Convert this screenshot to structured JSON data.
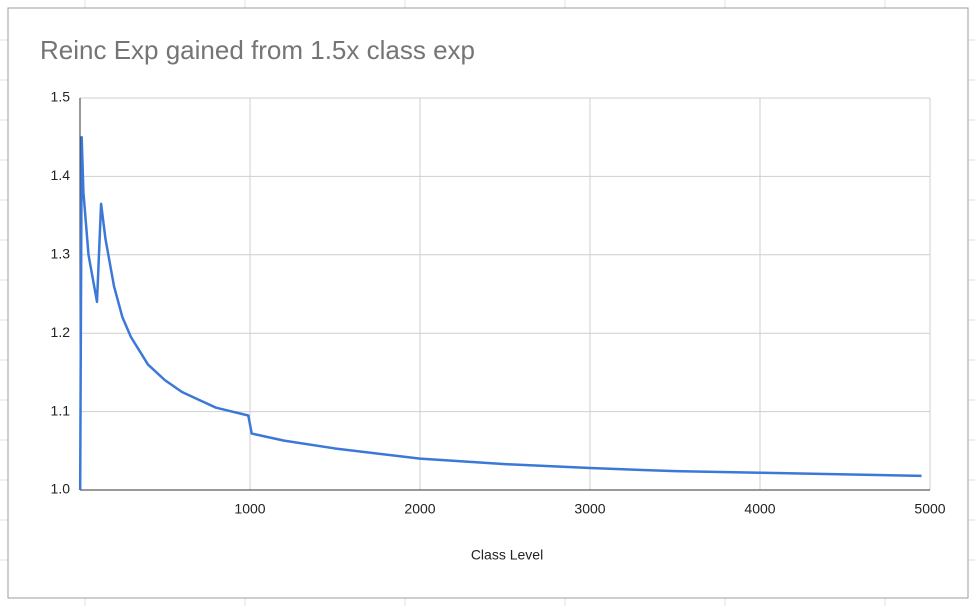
{
  "chart_data": {
    "type": "line",
    "title": "Reinc Exp gained from 1.5x class exp",
    "x_label": "Class Level",
    "x": [
      1,
      10,
      20,
      50,
      100,
      124,
      150,
      200,
      250,
      300,
      400,
      500,
      600,
      700,
      800,
      990,
      1010,
      1200,
      1500,
      2000,
      2500,
      3000,
      3500,
      4000,
      4500,
      4950
    ],
    "values": [
      1.0,
      1.45,
      1.38,
      1.3,
      1.24,
      1.365,
      1.32,
      1.26,
      1.22,
      1.195,
      1.16,
      1.14,
      1.125,
      1.115,
      1.105,
      1.095,
      1.072,
      1.063,
      1.053,
      1.04,
      1.033,
      1.028,
      1.024,
      1.022,
      1.02,
      1.018
    ],
    "color": "#3c78d8",
    "xlim": [
      0,
      5000
    ],
    "xticks": [
      1000,
      2000,
      3000,
      4000,
      5000
    ],
    "ylim": [
      1,
      1.5
    ],
    "yticks": [
      {
        "value": 1,
        "label": "1.0"
      },
      1.1,
      1.2,
      1.3,
      1.4,
      1.5
    ],
    "grid": true
  }
}
